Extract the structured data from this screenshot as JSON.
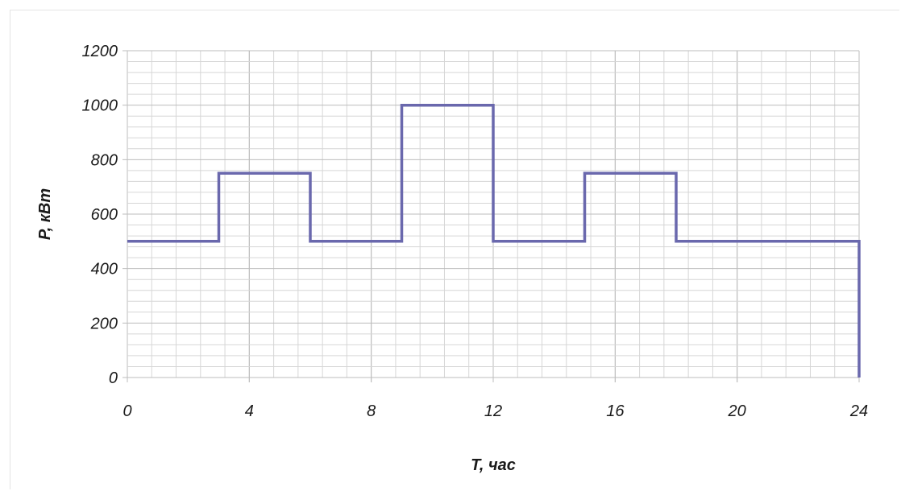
{
  "chart_data": {
    "type": "line",
    "step": true,
    "title": "",
    "xlabel": "T, час",
    "ylabel": "P, кВт",
    "xlim": [
      0,
      24
    ],
    "ylim": [
      0,
      1200
    ],
    "x_ticks": [
      0,
      4,
      8,
      12,
      16,
      20,
      24
    ],
    "y_ticks": [
      0,
      200,
      400,
      600,
      800,
      1000,
      1200
    ],
    "x_minor_step": 0.8,
    "y_minor_step": 40,
    "grid": true,
    "series": [
      {
        "color": "#6a68ad",
        "x": [
          0,
          3,
          3,
          6,
          6,
          9,
          9,
          12,
          12,
          15,
          15,
          18,
          18,
          24,
          24
        ],
        "y": [
          500,
          500,
          750,
          750,
          500,
          500,
          1000,
          1000,
          500,
          500,
          750,
          750,
          500,
          500,
          0
        ]
      }
    ],
    "colors": {
      "grid": "#d6d6d6",
      "grid_major": "#bdbdbd",
      "line": "#6a68ad"
    }
  }
}
